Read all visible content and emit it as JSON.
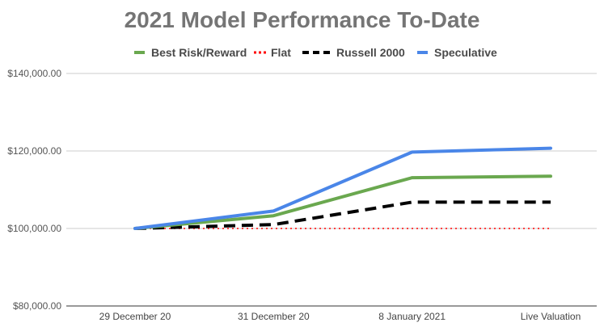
{
  "chart_data": {
    "type": "line",
    "title": "2021 Model Performance To-Date",
    "xlabel": "",
    "ylabel": "",
    "categories": [
      "29 December 20",
      "31 December 20",
      "8 January 2021",
      "Live Valuation"
    ],
    "ylim": [
      80000,
      140000
    ],
    "yticks": [
      80000,
      100000,
      120000,
      140000
    ],
    "ytick_labels": [
      "$80,000.00",
      "$100,000.00",
      "$120,000.00",
      "$140,000.00"
    ],
    "grid": true,
    "legend_position": "top",
    "series": [
      {
        "name": "Best Risk/Reward",
        "color": "#6aa84f",
        "style": "solid",
        "values": [
          100000,
          103300,
          113100,
          113500
        ]
      },
      {
        "name": "Flat",
        "color": "#ff0000",
        "style": "dotted",
        "values": [
          100000,
          100000,
          100000,
          100000
        ]
      },
      {
        "name": "Russell 2000",
        "color": "#000000",
        "style": "dashed",
        "values": [
          100000,
          101000,
          106800,
          106800
        ]
      },
      {
        "name": "Speculative",
        "color": "#4a86e8",
        "style": "solid",
        "values": [
          100000,
          104500,
          119700,
          120700
        ]
      }
    ]
  }
}
